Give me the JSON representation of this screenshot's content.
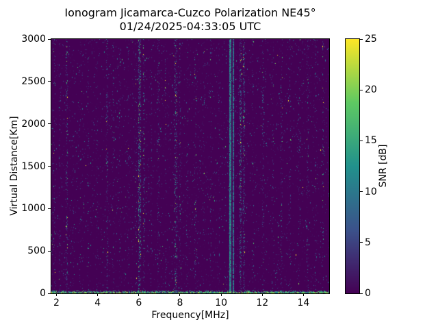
{
  "chart_data": {
    "type": "heatmap",
    "title": "Ionogram Jicamarca-Cuzco Polarization NE45°",
    "subtitle": "01/24/2025-04:33:05 UTC",
    "xlabel": "Frequency[MHz]",
    "ylabel": "Virtual Distance[Km]",
    "colorbar_label": "SNR [dB]",
    "x_range": [
      1.75,
      15.25
    ],
    "y_range": [
      0,
      3000
    ],
    "snr_range": [
      0,
      25
    ],
    "x_ticks": [
      2,
      4,
      6,
      8,
      10,
      12,
      14
    ],
    "y_ticks": [
      0,
      500,
      1000,
      1500,
      2000,
      2500,
      3000
    ],
    "colorbar_ticks": [
      0,
      5,
      10,
      15,
      20,
      25
    ],
    "colormap": "viridis",
    "colormap_stops": [
      "#440154",
      "#3b528b",
      "#21918c",
      "#5ec962",
      "#fde725"
    ],
    "background": {
      "snr": 0,
      "color": "#440154"
    },
    "noise": {
      "density": 0.028,
      "mean_snr": 5,
      "description": "sparse low-SNR speckle noise over the whole frequency/range map"
    },
    "bottom_band": {
      "y_extent_km": 30,
      "density": 0.85,
      "snr_min": 8,
      "snr_max": 25,
      "description": "dense bright return band at 0 km across all frequencies"
    },
    "rfi_lines_mhz": [
      {
        "freq": 1.9,
        "density": 0.1,
        "snr": 6
      },
      {
        "freq": 2.15,
        "density": 0.1,
        "snr": 6
      },
      {
        "freq": 2.5,
        "density": 0.2,
        "snr": 8,
        "width": 0.06
      },
      {
        "freq": 2.8,
        "density": 0.08,
        "snr": 5
      },
      {
        "freq": 3.15,
        "density": 0.07,
        "snr": 5
      },
      {
        "freq": 3.55,
        "density": 0.09,
        "snr": 6
      },
      {
        "freq": 3.95,
        "density": 0.07,
        "snr": 5
      },
      {
        "freq": 4.45,
        "density": 0.15,
        "snr": 7
      },
      {
        "freq": 4.75,
        "density": 0.1,
        "snr": 6
      },
      {
        "freq": 5.1,
        "density": 0.08,
        "snr": 5
      },
      {
        "freq": 5.5,
        "density": 0.08,
        "snr": 5
      },
      {
        "freq": 5.85,
        "density": 0.1,
        "snr": 6
      },
      {
        "freq": 6.05,
        "density": 0.35,
        "snr": 9,
        "width": 0.07
      },
      {
        "freq": 6.25,
        "density": 0.18,
        "snr": 7
      },
      {
        "freq": 6.6,
        "density": 0.08,
        "snr": 5
      },
      {
        "freq": 6.95,
        "density": 0.12,
        "snr": 6
      },
      {
        "freq": 7.3,
        "density": 0.1,
        "snr": 6
      },
      {
        "freq": 7.8,
        "density": 0.25,
        "snr": 8,
        "width": 0.07
      },
      {
        "freq": 8.0,
        "density": 0.15,
        "snr": 6
      },
      {
        "freq": 8.35,
        "density": 0.08,
        "snr": 5
      },
      {
        "freq": 8.75,
        "density": 0.13,
        "snr": 6
      },
      {
        "freq": 9.15,
        "density": 0.07,
        "snr": 5
      },
      {
        "freq": 9.5,
        "density": 0.1,
        "snr": 6
      },
      {
        "freq": 9.9,
        "density": 0.08,
        "snr": 5
      },
      {
        "freq": 10.45,
        "density": 0.95,
        "snr": 10,
        "width": 0.05
      },
      {
        "freq": 10.6,
        "density": 0.85,
        "snr": 9,
        "width": 0.04
      },
      {
        "freq": 10.95,
        "density": 0.4,
        "snr": 7,
        "width": 0.05
      },
      {
        "freq": 11.1,
        "density": 0.3,
        "snr": 7
      },
      {
        "freq": 11.55,
        "density": 0.1,
        "snr": 5
      },
      {
        "freq": 12.05,
        "density": 0.13,
        "snr": 6
      },
      {
        "freq": 12.5,
        "density": 0.08,
        "snr": 5
      },
      {
        "freq": 12.95,
        "density": 0.1,
        "snr": 6
      },
      {
        "freq": 13.35,
        "density": 0.09,
        "snr": 5
      },
      {
        "freq": 13.8,
        "density": 0.08,
        "snr": 5
      },
      {
        "freq": 14.2,
        "density": 0.13,
        "snr": 6
      },
      {
        "freq": 14.6,
        "density": 0.09,
        "snr": 5
      },
      {
        "freq": 14.95,
        "density": 0.15,
        "snr": 7
      }
    ]
  }
}
